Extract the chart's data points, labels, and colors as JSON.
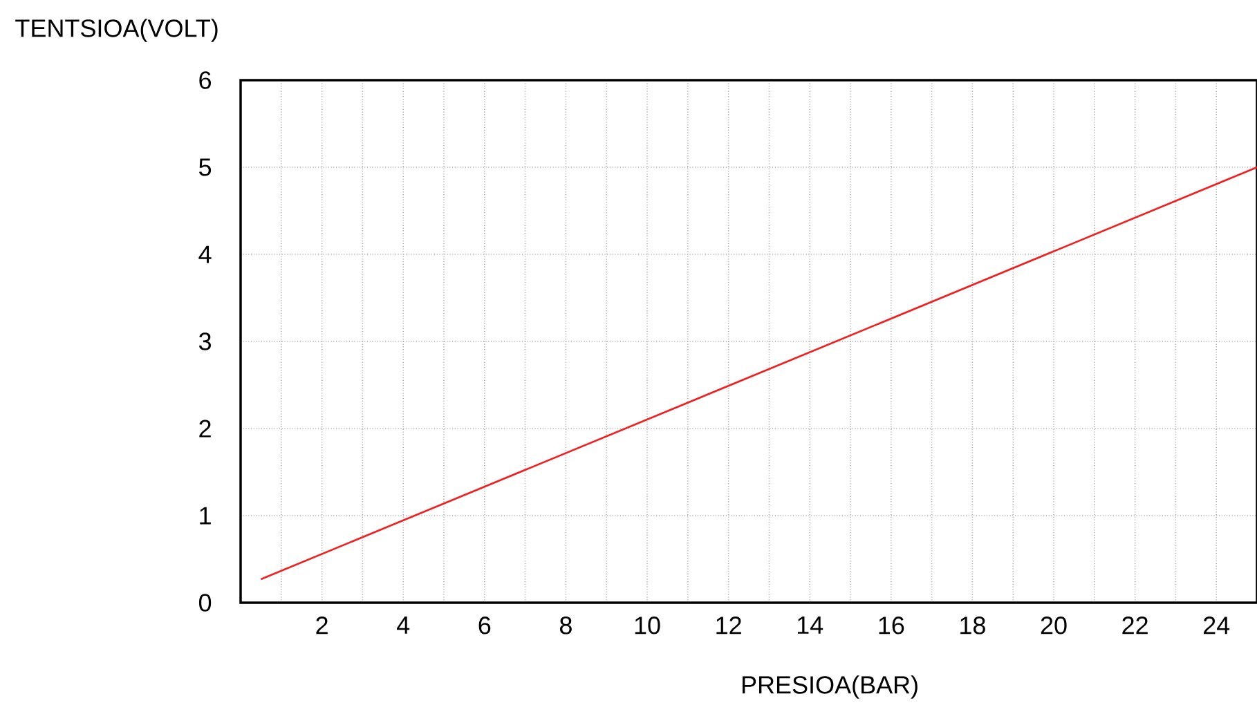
{
  "chart_data": {
    "type": "line",
    "xlabel": "PRESIOA(BAR)",
    "ylabel": "TENTSIOA(VOLT)",
    "x": [
      0.5,
      25
    ],
    "values": [
      0.27,
      5
    ],
    "color": "#ee2222",
    "xlim": [
      0,
      25
    ],
    "ylim": [
      0,
      6
    ],
    "xticks": [
      {
        "value": 1,
        "label": null
      },
      2,
      {
        "value": 3,
        "label": null
      },
      4,
      {
        "value": 5,
        "label": null
      },
      6,
      {
        "value": 7,
        "label": null
      },
      8,
      {
        "value": 9,
        "label": null
      },
      10,
      {
        "value": 11,
        "label": null
      },
      12,
      {
        "value": 13,
        "label": null
      },
      14,
      {
        "value": 15,
        "label": null
      },
      16,
      {
        "value": 17,
        "label": null
      },
      18,
      {
        "value": 19,
        "label": null
      },
      20,
      {
        "value": 21,
        "label": null
      },
      22,
      {
        "value": 23,
        "label": null
      },
      24
    ],
    "yticks": [
      0,
      1,
      2,
      3,
      4,
      5,
      6
    ],
    "grid": true,
    "marker": "none",
    "line_style": "solid"
  }
}
